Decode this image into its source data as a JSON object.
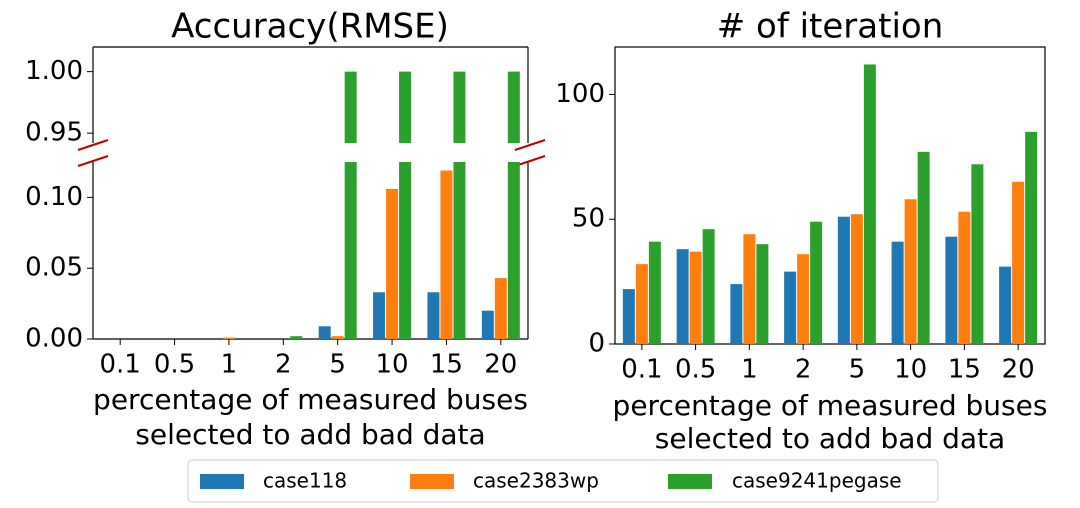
{
  "chart_data": [
    {
      "type": "bar",
      "title": "Accuracy(RMSE)",
      "categories": [
        "0.1",
        "0.5",
        "1",
        "2",
        "5",
        "10",
        "15",
        "20"
      ],
      "xlabel": [
        "percentage of measured buses",
        "selected to add bad data"
      ],
      "series": [
        {
          "name": "case118",
          "color": "#1f77b4",
          "values": [
            0,
            0,
            0,
            0,
            0.009,
            0.033,
            0.033,
            0.02
          ]
        },
        {
          "name": "case2383wp",
          "color": "#ff7f0e",
          "values": [
            0,
            0,
            0.001,
            0,
            0.002,
            0.106,
            0.119,
            0.043
          ]
        },
        {
          "name": "case9241pegase",
          "color": "#2ca02c",
          "values": [
            0,
            0,
            0,
            0.002,
            1.0,
            1.0,
            1.0,
            1.0
          ]
        }
      ],
      "ylim": [
        0,
        0.125
      ],
      "yticks": [
        {
          "value": 0,
          "label": "0.00"
        },
        {
          "value": 0.05,
          "label": "0.05"
        },
        {
          "value": 0.1,
          "label": "0.10"
        }
      ],
      "y_break": {
        "ylim": [
          0.942,
          1.02
        ],
        "yticks": [
          {
            "value": 0.95,
            "label": "0.95"
          },
          {
            "value": 1,
            "label": "1.00"
          }
        ]
      }
    },
    {
      "type": "bar",
      "title": "# of iteration",
      "categories": [
        "0.1",
        "0.5",
        "1",
        "2",
        "5",
        "10",
        "15",
        "20"
      ],
      "xlabel": [
        "percentage of measured buses",
        "selected to add bad data"
      ],
      "series": [
        {
          "color": "#1f77b4",
          "values": [
            22,
            38,
            24,
            29,
            51,
            41,
            43,
            31
          ]
        },
        {
          "color": "#ff7f0e",
          "values": [
            32,
            37,
            44,
            36,
            52,
            58,
            53,
            65
          ]
        },
        {
          "color": "#2ca02c",
          "values": [
            41,
            46,
            40,
            49,
            112,
            77,
            72,
            85
          ]
        }
      ],
      "ylim": [
        0,
        119
      ],
      "yticks": [
        0,
        50,
        100
      ]
    }
  ]
}
